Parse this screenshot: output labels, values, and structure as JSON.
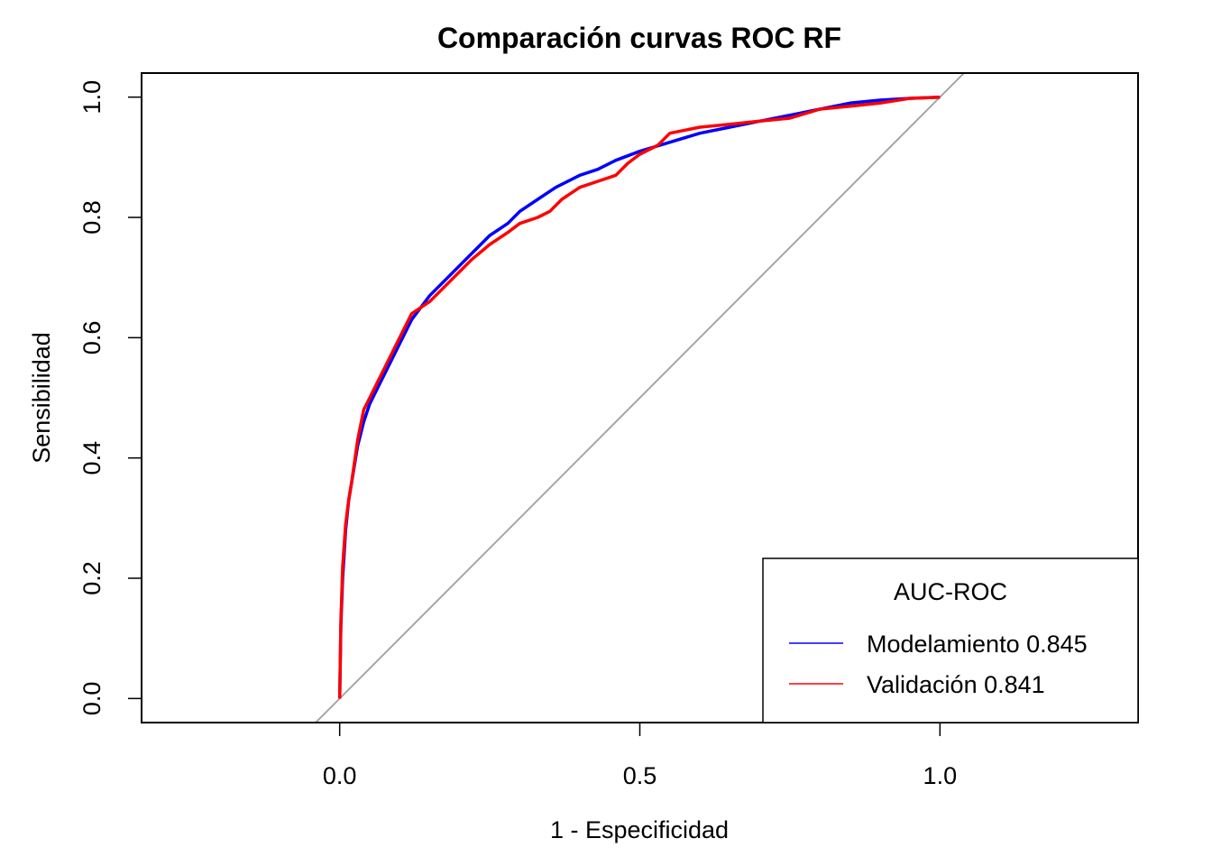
{
  "chart_data": {
    "type": "line",
    "title": "Comparación curvas ROC RF",
    "xlabel": "1 - Especificidad",
    "ylabel": "Sensibilidad",
    "xlim": [
      -0.33,
      1.33
    ],
    "ylim": [
      -0.04,
      1.04
    ],
    "xticks": [
      0.0,
      0.5,
      1.0
    ],
    "xtick_labels": [
      "0.0",
      "0.5",
      "1.0"
    ],
    "yticks": [
      0.0,
      0.2,
      0.4,
      0.6,
      0.8,
      1.0
    ],
    "ytick_labels": [
      "0.0",
      "0.2",
      "0.4",
      "0.6",
      "0.8",
      "1.0"
    ],
    "grid": false,
    "reference_line": {
      "slope": 1,
      "intercept": 0,
      "color": "#a6a6a6"
    },
    "legend": {
      "title": "AUC-ROC",
      "position": "bottom-right",
      "entries": [
        "Modelamiento 0.845",
        "Validación 0.841"
      ]
    },
    "series": [
      {
        "color": "#0000ff",
        "x": [
          0.0,
          0.002,
          0.005,
          0.01,
          0.015,
          0.02,
          0.03,
          0.04,
          0.05,
          0.06,
          0.08,
          0.1,
          0.12,
          0.15,
          0.18,
          0.2,
          0.22,
          0.25,
          0.28,
          0.3,
          0.33,
          0.36,
          0.4,
          0.43,
          0.46,
          0.5,
          0.55,
          0.6,
          0.65,
          0.7,
          0.75,
          0.8,
          0.85,
          0.9,
          0.95,
          1.0
        ],
        "y": [
          0.0,
          0.12,
          0.2,
          0.28,
          0.33,
          0.36,
          0.42,
          0.46,
          0.49,
          0.51,
          0.55,
          0.59,
          0.63,
          0.67,
          0.7,
          0.72,
          0.74,
          0.77,
          0.79,
          0.81,
          0.83,
          0.85,
          0.87,
          0.88,
          0.895,
          0.91,
          0.925,
          0.94,
          0.95,
          0.96,
          0.97,
          0.98,
          0.99,
          0.995,
          0.998,
          1.0
        ]
      },
      {
        "color": "#ff0000",
        "x": [
          0.0,
          0.002,
          0.005,
          0.01,
          0.015,
          0.02,
          0.03,
          0.04,
          0.05,
          0.06,
          0.08,
          0.1,
          0.12,
          0.15,
          0.18,
          0.2,
          0.22,
          0.25,
          0.28,
          0.3,
          0.33,
          0.35,
          0.37,
          0.4,
          0.43,
          0.46,
          0.48,
          0.5,
          0.53,
          0.55,
          0.6,
          0.65,
          0.7,
          0.75,
          0.8,
          0.85,
          0.9,
          0.95,
          1.0
        ],
        "y": [
          0.0,
          0.13,
          0.22,
          0.29,
          0.33,
          0.36,
          0.43,
          0.48,
          0.5,
          0.52,
          0.56,
          0.6,
          0.64,
          0.66,
          0.69,
          0.71,
          0.73,
          0.755,
          0.775,
          0.79,
          0.8,
          0.81,
          0.83,
          0.85,
          0.86,
          0.87,
          0.89,
          0.905,
          0.92,
          0.94,
          0.95,
          0.955,
          0.96,
          0.965,
          0.98,
          0.985,
          0.99,
          0.998,
          1.0
        ]
      }
    ]
  }
}
